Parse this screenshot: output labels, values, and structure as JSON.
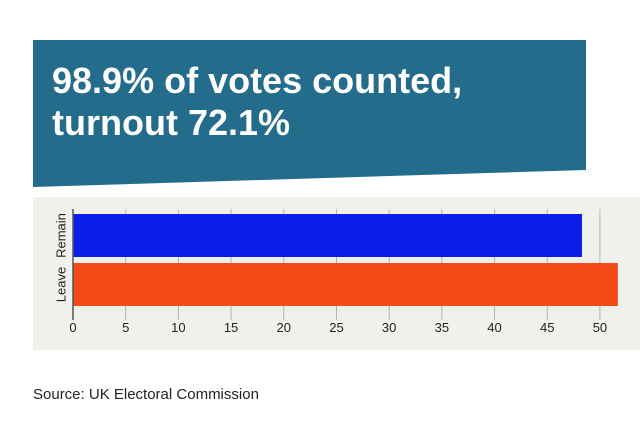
{
  "headline": "98.9% of votes counted, turnout 72.1%",
  "source": "Source: UK Electoral Commission",
  "colors": {
    "banner": "#246c8b",
    "chart_background": "#f0f0ed",
    "remain": "#0c1ee8",
    "leave": "#f44a18",
    "text": "#222222"
  },
  "chart_data": {
    "type": "bar",
    "orientation": "horizontal",
    "categories": [
      "Remain",
      "Leave"
    ],
    "values": [
      48.3,
      51.7
    ],
    "xlim": [
      0,
      52
    ],
    "xticks": [
      0,
      5,
      10,
      15,
      20,
      25,
      30,
      35,
      40,
      45,
      50
    ],
    "grid": "vertical",
    "title": "",
    "xlabel": "",
    "ylabel": ""
  }
}
